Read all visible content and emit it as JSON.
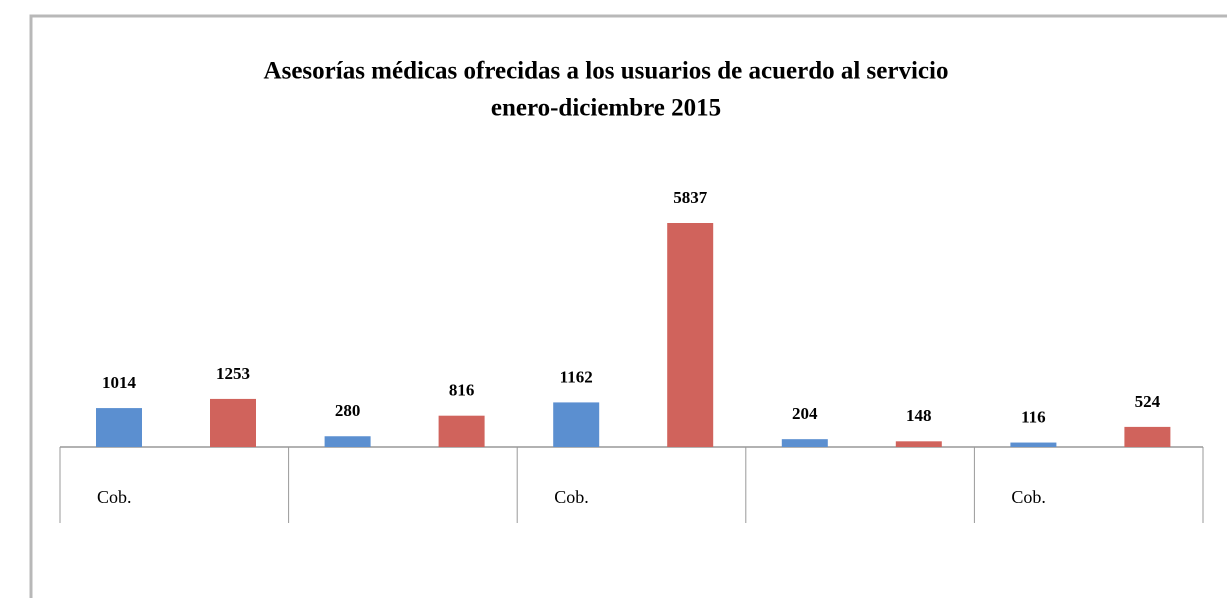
{
  "chart_data": {
    "type": "bar",
    "title": "Asesorías médicas ofrecidas a los usuarios de acuerdo al servicio",
    "subtitle": "enero-diciembre  2015",
    "categories": [
      "Cob.",
      null,
      "Cob.",
      null,
      "Cob."
    ],
    "series": [
      {
        "color": "#5b8fd0",
        "values": [
          1014,
          280,
          1162,
          204,
          116
        ]
      },
      {
        "color": "#d0635c",
        "values": [
          1253,
          816,
          5837,
          148,
          524
        ]
      }
    ]
  }
}
